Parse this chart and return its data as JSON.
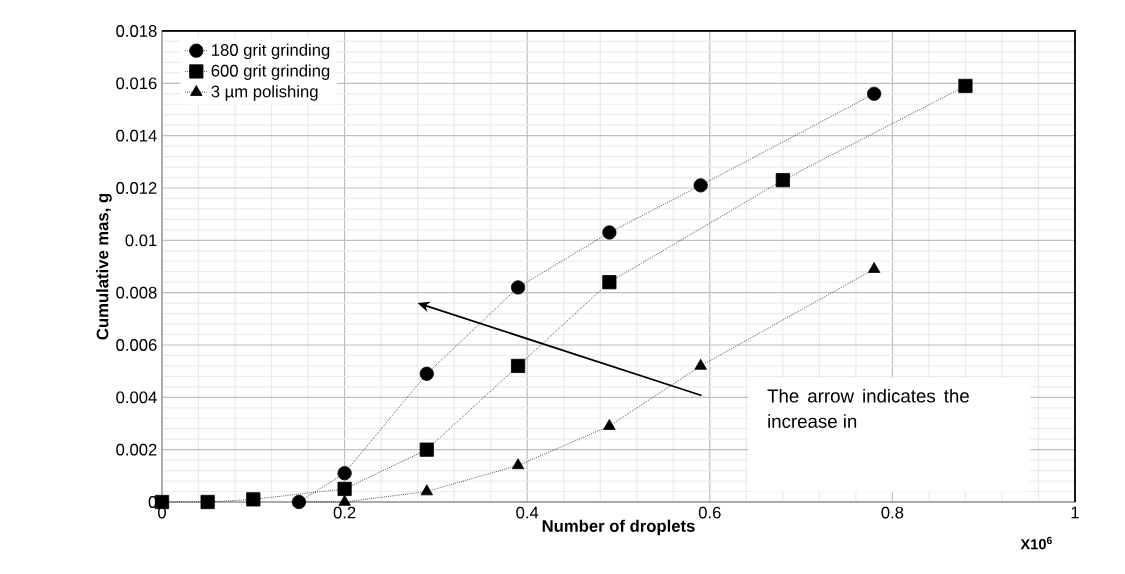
{
  "chart_data": {
    "type": "line",
    "xlabel": "Number of droplets",
    "ylabel": "Cumulative mas, g",
    "series": [
      {
        "name": "180 grit grinding",
        "color": "#000000",
        "marker": "circle",
        "x": [
          0.15,
          0.2,
          0.29,
          0.39,
          0.49,
          0.59,
          0.78
        ],
        "values": [
          0,
          0.0011,
          0.0049,
          0.0082,
          0.0103,
          0.0121,
          0.0156
        ]
      },
      {
        "name": "600 grit grinding",
        "color": "#000000",
        "marker": "square",
        "x": [
          0,
          0.05,
          0.1,
          0.2,
          0.29,
          0.39,
          0.49,
          0.68,
          0.88
        ],
        "values": [
          0,
          0,
          0.0001,
          0.0005,
          0.002,
          0.0052,
          0.0084,
          0.0123,
          0.0159
        ]
      },
      {
        "name": "3 µm polishing",
        "color": "#000000",
        "marker": "triangle",
        "x": [
          0.15,
          0.2,
          0.29,
          0.39,
          0.49,
          0.59,
          0.78
        ],
        "values": [
          0,
          0,
          0.0004,
          0.0014,
          0.0029,
          0.0052,
          0.0089
        ]
      }
    ],
    "xlim": [
      0,
      1
    ],
    "xticks": [
      0,
      0.2,
      0.4,
      0.6,
      0.8,
      1
    ],
    "ylim": [
      0,
      0.018
    ],
    "yticks": [
      0,
      0.002,
      0.004,
      0.006,
      0.008,
      0.01,
      0.012,
      0.014,
      0.016,
      0.018
    ],
    "grid": true,
    "legend": "top left",
    "line_style": "dotted",
    "annotations": [
      "The arrow indicates the increase in",
      "X10$^{6}$"
    ]
  }
}
